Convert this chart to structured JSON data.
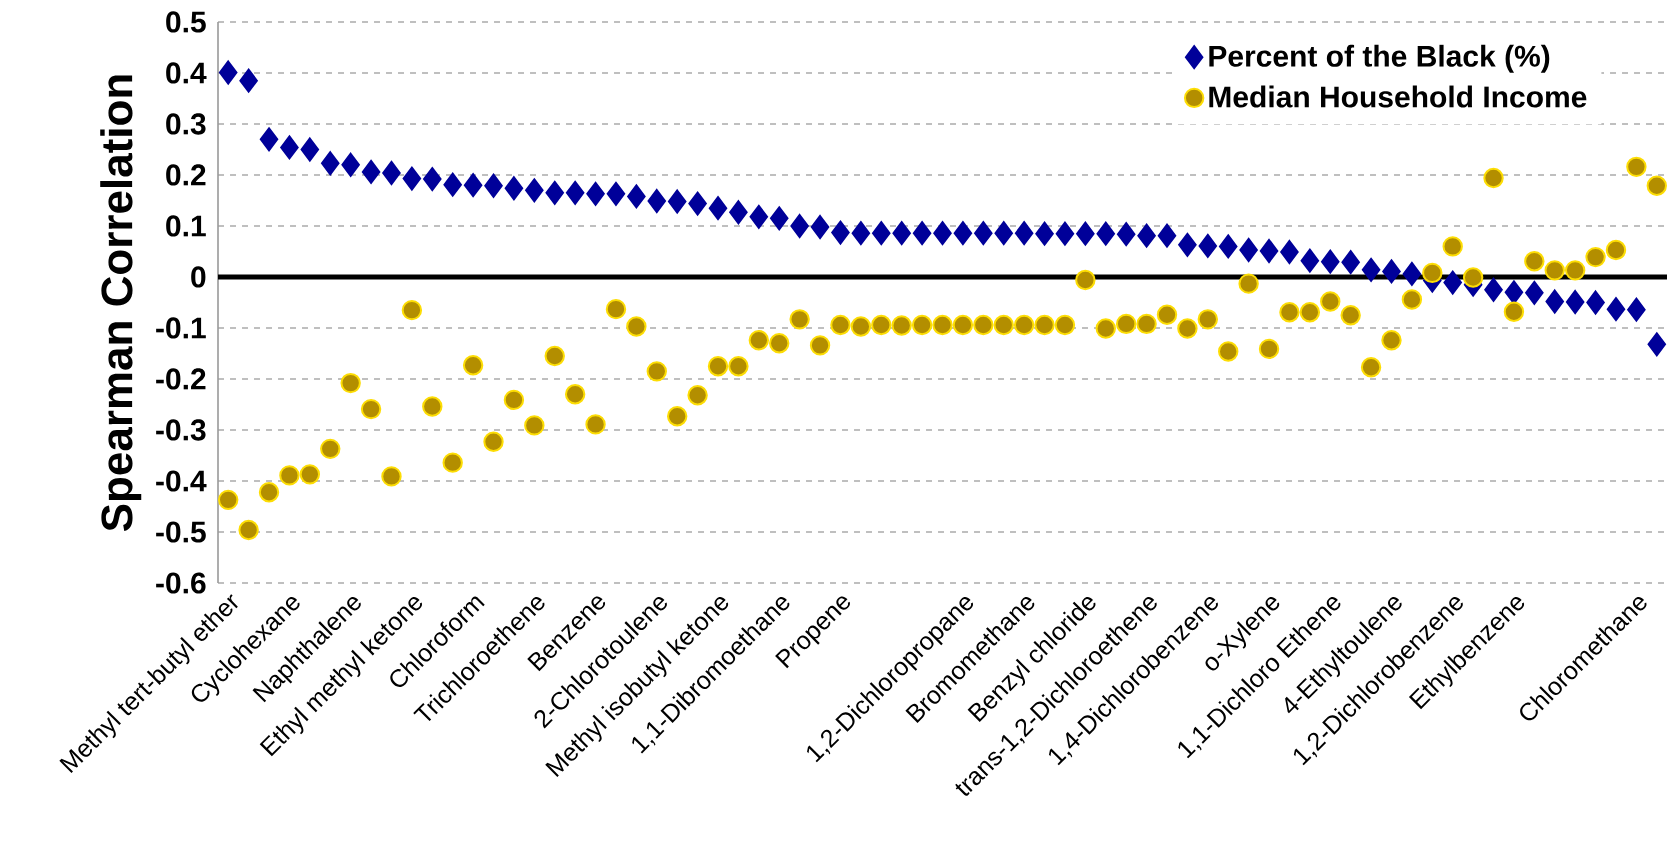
{
  "chart_data": {
    "type": "scatter",
    "ylabel": "Spearman Correlation",
    "categories": [
      "Methyl tert-butyl ether",
      null,
      null,
      "Cyclohexane",
      null,
      null,
      "Naphthalene",
      null,
      null,
      "Ethyl methyl ketone",
      null,
      null,
      "Chloroform",
      null,
      null,
      "Trichloroethene",
      null,
      null,
      "Benzene",
      null,
      null,
      "2-Chlorotoulene",
      null,
      null,
      "Methyl isobutyl ketone",
      null,
      null,
      "1,1-Dibromoethane",
      null,
      null,
      "Propene",
      null,
      null,
      null,
      null,
      null,
      "1,2-Dichloropropane",
      null,
      null,
      "Bromomethane",
      null,
      null,
      "Benzyl chloride",
      null,
      null,
      "trans-1,2-Dichloroethene",
      null,
      null,
      "1,4-Dichlorobenzene",
      null,
      null,
      "o-Xylene",
      null,
      null,
      "1,1-Dichloro Ethene",
      null,
      null,
      "4-Ethyltoulene",
      null,
      null,
      "1,2-Dichlorobenzene",
      null,
      null,
      "Ethylbenzene",
      null,
      null,
      null,
      null,
      null,
      "Chloromethane",
      null
    ],
    "series": [
      {
        "name": "Percent of the Black (%)",
        "color": "#000099",
        "marker": "diamond",
        "values": [
          0.401,
          0.385,
          0.27,
          0.254,
          0.25,
          0.223,
          0.22,
          0.206,
          0.204,
          0.193,
          0.192,
          0.181,
          0.18,
          0.179,
          0.174,
          0.17,
          0.165,
          0.165,
          0.163,
          0.163,
          0.158,
          0.149,
          0.148,
          0.144,
          0.135,
          0.127,
          0.118,
          0.115,
          0.1,
          0.098,
          0.087,
          0.086,
          0.086,
          0.086,
          0.086,
          0.086,
          0.086,
          0.086,
          0.086,
          0.086,
          0.085,
          0.085,
          0.085,
          0.085,
          0.084,
          0.081,
          0.081,
          0.063,
          0.061,
          0.06,
          0.053,
          0.051,
          0.049,
          0.032,
          0.03,
          0.029,
          0.014,
          0.011,
          0.006,
          -0.007,
          -0.011,
          -0.015,
          -0.025,
          -0.03,
          -0.031,
          -0.048,
          -0.049,
          -0.05,
          -0.063,
          -0.064,
          -0.132
        ]
      },
      {
        "name": "Median Household Income",
        "color": "#b38e00",
        "marker": "circle",
        "values": [
          -0.437,
          -0.496,
          -0.422,
          -0.389,
          -0.387,
          -0.337,
          -0.208,
          -0.259,
          -0.391,
          -0.065,
          -0.254,
          -0.364,
          -0.173,
          -0.323,
          -0.241,
          -0.291,
          -0.155,
          -0.23,
          -0.289,
          -0.063,
          -0.097,
          -0.185,
          -0.273,
          -0.232,
          -0.175,
          -0.175,
          -0.124,
          -0.13,
          -0.083,
          -0.134,
          -0.094,
          -0.097,
          -0.094,
          -0.095,
          -0.094,
          -0.094,
          -0.094,
          -0.094,
          -0.094,
          -0.094,
          -0.094,
          -0.094,
          -0.006,
          -0.101,
          -0.092,
          -0.092,
          -0.074,
          -0.101,
          -0.083,
          -0.146,
          -0.013,
          -0.141,
          -0.069,
          -0.069,
          -0.048,
          -0.075,
          -0.177,
          -0.124,
          -0.044,
          0.008,
          0.06,
          -0.001,
          0.194,
          -0.068,
          0.031,
          0.013,
          0.013,
          0.039,
          0.053,
          0.216,
          0.179
        ]
      }
    ],
    "ylim": [
      -0.6,
      0.5
    ],
    "yticks": [
      -0.6,
      -0.5,
      -0.4,
      -0.3,
      -0.2,
      -0.1,
      0,
      0.1,
      0.2,
      0.3,
      0.4,
      0.5
    ],
    "grid": "y",
    "legend": "top right",
    "ref_lines": [
      {
        "axis": "y",
        "value": 0,
        "color": "#000000"
      }
    ]
  }
}
